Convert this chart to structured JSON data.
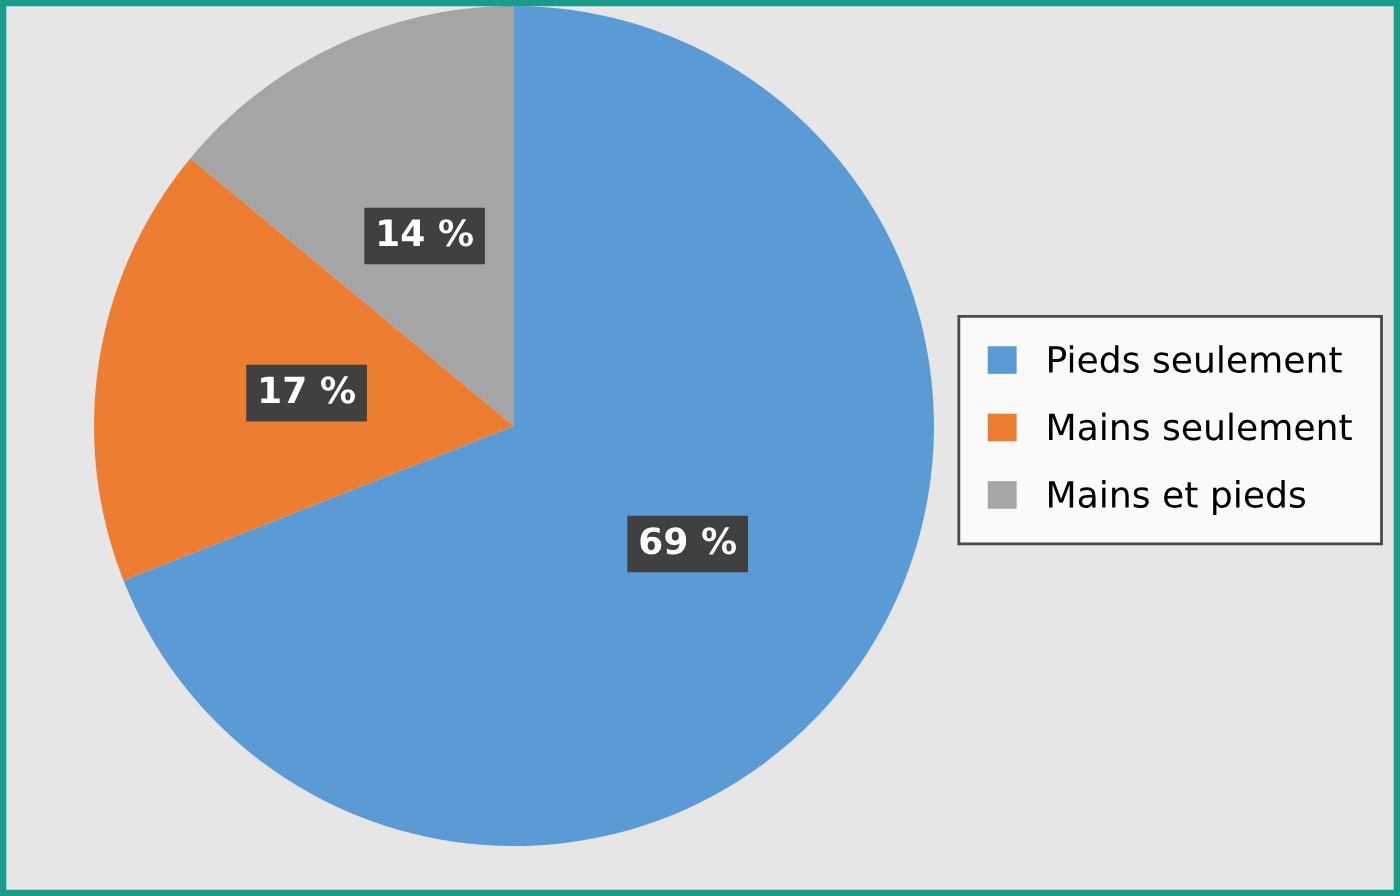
{
  "chart_data": {
    "type": "pie",
    "categories": [
      "Pieds seulement",
      "Mains seulement",
      "Mains et pieds"
    ],
    "values": [
      69,
      17,
      14
    ],
    "colors": [
      "#5b9bd5",
      "#ed7d31",
      "#a5a5a5"
    ],
    "value_labels": [
      "69 %",
      "17 %",
      "14 %"
    ],
    "legend": "right"
  }
}
